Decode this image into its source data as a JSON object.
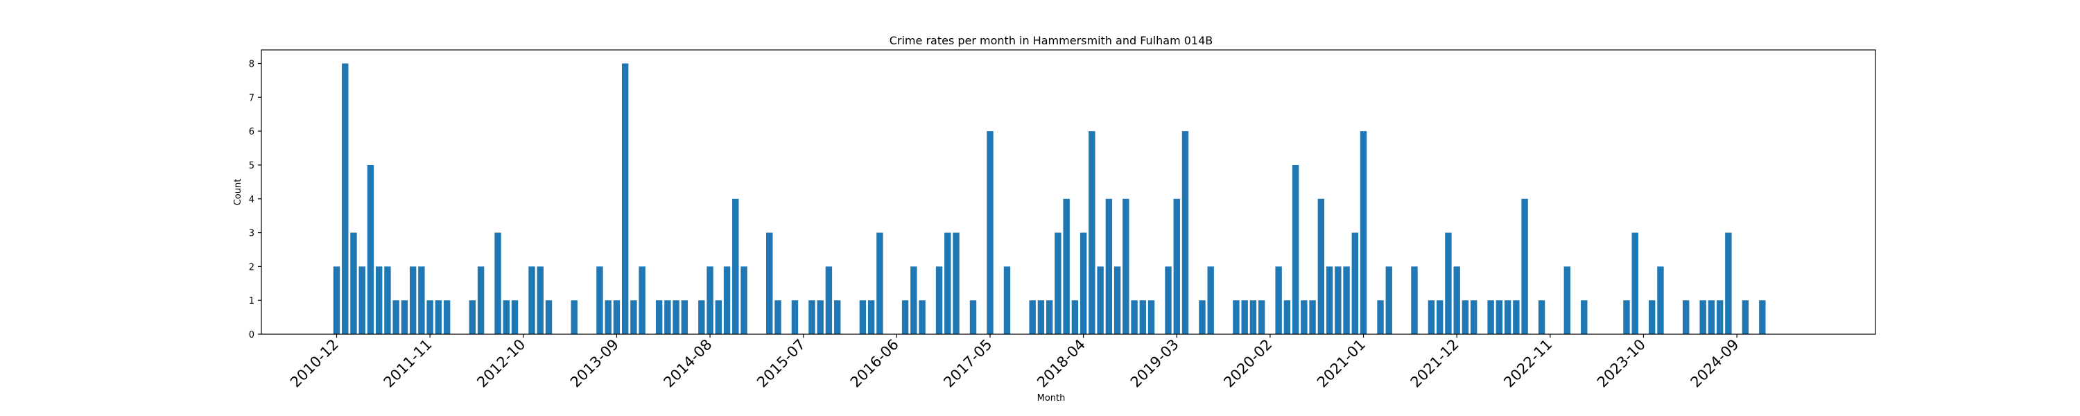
{
  "chart_data": {
    "type": "bar",
    "title": "Crime rates per month in Hammersmith and Fulham 014B",
    "xlabel": "Month",
    "ylabel": "Count",
    "ylim": [
      0,
      8.4
    ],
    "yticks": [
      0,
      1,
      2,
      3,
      4,
      5,
      6,
      7,
      8
    ],
    "grid": false,
    "legend": "none",
    "bar_color": "#1f77b4",
    "x_start": "2010-12",
    "x_end": "2025-02",
    "xticks": [
      "2010-12",
      "2011-11",
      "2012-10",
      "2013-09",
      "2014-08",
      "2015-07",
      "2016-06",
      "2017-05",
      "2018-04",
      "2019-03",
      "2020-02",
      "2021-01",
      "2021-12",
      "2022-11",
      "2023-10",
      "2024-09"
    ],
    "x": [
      "2010-12",
      "2011-01",
      "2011-02",
      "2011-03",
      "2011-04",
      "2011-05",
      "2011-06",
      "2011-07",
      "2011-08",
      "2011-09",
      "2011-10",
      "2011-11",
      "2011-12",
      "2012-01",
      "2012-04",
      "2012-05",
      "2012-07",
      "2012-08",
      "2012-09",
      "2012-11",
      "2012-12",
      "2013-01",
      "2013-04",
      "2013-07",
      "2013-08",
      "2013-09",
      "2013-10",
      "2013-11",
      "2013-12",
      "2014-02",
      "2014-03",
      "2014-04",
      "2014-05",
      "2014-07",
      "2014-08",
      "2014-09",
      "2014-10",
      "2014-11",
      "2014-12",
      "2015-03",
      "2015-04",
      "2015-06",
      "2015-08",
      "2015-09",
      "2015-10",
      "2015-11",
      "2016-02",
      "2016-03",
      "2016-04",
      "2016-07",
      "2016-08",
      "2016-09",
      "2016-11",
      "2016-12",
      "2017-01",
      "2017-03",
      "2017-05",
      "2017-07",
      "2017-10",
      "2017-11",
      "2017-12",
      "2018-01",
      "2018-02",
      "2018-03",
      "2018-04",
      "2018-05",
      "2018-06",
      "2018-07",
      "2018-08",
      "2018-09",
      "2018-10",
      "2018-11",
      "2018-12",
      "2019-02",
      "2019-03",
      "2019-04",
      "2019-06",
      "2019-07",
      "2019-10",
      "2019-11",
      "2019-12",
      "2020-01",
      "2020-03",
      "2020-04",
      "2020-05",
      "2020-06",
      "2020-07",
      "2020-08",
      "2020-09",
      "2020-10",
      "2020-11",
      "2020-12",
      "2021-01",
      "2021-03",
      "2021-04",
      "2021-07",
      "2021-09",
      "2021-10",
      "2021-11",
      "2021-12",
      "2022-01",
      "2022-02",
      "2022-04",
      "2022-05",
      "2022-06",
      "2022-07",
      "2022-08",
      "2022-10",
      "2023-01",
      "2023-03",
      "2023-08",
      "2023-09",
      "2023-11",
      "2023-12",
      "2024-03",
      "2024-05",
      "2024-06",
      "2024-07",
      "2024-08",
      "2024-10",
      "2024-12"
    ],
    "values": [
      2,
      8,
      3,
      2,
      5,
      2,
      2,
      1,
      1,
      2,
      2,
      1,
      1,
      1,
      1,
      2,
      3,
      1,
      1,
      2,
      2,
      1,
      1,
      2,
      1,
      1,
      8,
      1,
      2,
      1,
      1,
      1,
      1,
      1,
      2,
      1,
      2,
      4,
      2,
      3,
      1,
      1,
      1,
      1,
      2,
      1,
      1,
      1,
      3,
      1,
      2,
      1,
      2,
      3,
      3,
      1,
      6,
      2,
      1,
      1,
      1,
      3,
      4,
      1,
      3,
      6,
      2,
      4,
      2,
      4,
      1,
      1,
      1,
      2,
      4,
      6,
      1,
      2,
      1,
      1,
      1,
      1,
      2,
      1,
      5,
      1,
      1,
      4,
      2,
      2,
      2,
      3,
      6,
      1,
      2,
      2,
      1,
      1,
      3,
      2,
      1,
      1,
      1,
      1,
      1,
      1,
      4,
      1,
      2,
      1,
      1,
      3,
      1,
      2,
      1,
      1,
      1,
      1,
      3,
      1,
      1
    ]
  }
}
